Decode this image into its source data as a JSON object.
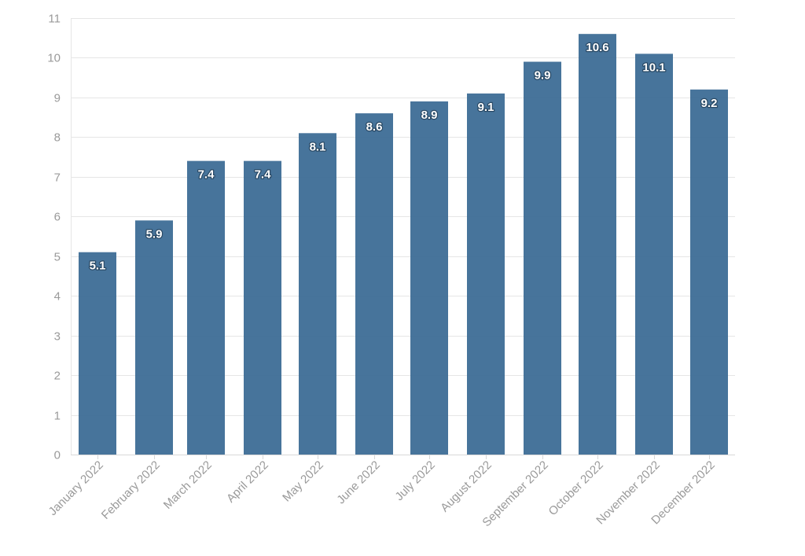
{
  "chart_data": {
    "type": "bar",
    "categories": [
      "January 2022",
      "February 2022",
      "March 2022",
      "April 2022",
      "May 2022",
      "June 2022",
      "July 2022",
      "August 2022",
      "September 2022",
      "October 2022",
      "November 2022",
      "December 2022"
    ],
    "values": [
      5.1,
      5.9,
      7.4,
      7.4,
      8.1,
      8.6,
      8.9,
      9.1,
      9.9,
      10.6,
      10.1,
      9.2
    ],
    "data_labels": [
      "5.1",
      "5.9",
      "7.4",
      "7.4",
      "8.1",
      "8.6",
      "8.9",
      "9.1",
      "9.9",
      "10.6",
      "10.1",
      "9.2"
    ],
    "y_ticks": [
      "0",
      "1",
      "2",
      "3",
      "4",
      "5",
      "6",
      "7",
      "8",
      "9",
      "10",
      "11"
    ],
    "ylim": [
      0,
      11
    ],
    "title": "",
    "xlabel": "",
    "ylabel": "",
    "grid": true,
    "legend": "none",
    "colors": {
      "bar": "#3f6e97",
      "grid": "#e6e6e6",
      "tick_text": "#9a9a9a",
      "label_text": "#ffffff"
    }
  }
}
